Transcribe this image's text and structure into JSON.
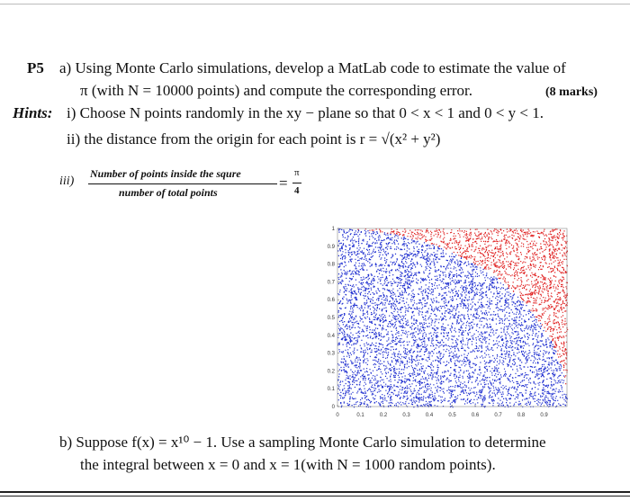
{
  "problem": {
    "label": "P5",
    "part_a": {
      "line1": "a)  Using Monte Carlo simulations, develop a MatLab code to estimate the value of",
      "line2": "π (with N = 10000 points) and compute the corresponding error.",
      "marks": "(8 marks)"
    },
    "hints": {
      "label": "Hints:",
      "i": "i)  Choose N points randomly in the xy − plane so that 0 < x < 1 and 0 < y < 1.",
      "ii": "ii) the distance from the origin for each point is  r = √(x² + y²)",
      "iii": {
        "label": "iii)",
        "numerator": "Number of points inside the squre",
        "denominator": "number of total points",
        "equals": "=",
        "pi": "π",
        "four": "4"
      }
    },
    "figure": {
      "xlim": [
        0,
        1
      ],
      "ylim": [
        0,
        1
      ],
      "xticks": [
        0,
        0.1,
        0.2,
        0.3,
        0.4,
        0.5,
        0.6,
        0.7,
        0.8,
        0.9
      ],
      "yticks": [
        0,
        0.1,
        0.2,
        0.3,
        0.4,
        0.5,
        0.6,
        0.7,
        0.8,
        0.9,
        1
      ]
    },
    "part_b": {
      "line1": "b)  Suppose  f(x) = x¹⁰ − 1. Use a sampling Monte Carlo simulation to determine",
      "line2": "the integral between x = 0 and x = 1(with N = 1000 random points)."
    }
  }
}
